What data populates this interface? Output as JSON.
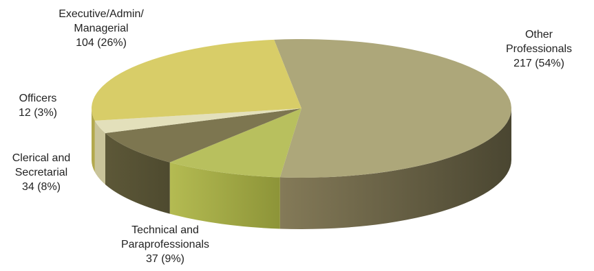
{
  "chart_data": {
    "type": "pie",
    "three_d": true,
    "slices": [
      {
        "category": "Other Professionals",
        "lines": [
          "Other",
          "Professionals"
        ],
        "value": 217,
        "percent_label": "217 (54%)",
        "color": "#ada77a"
      },
      {
        "category": "Technical and Paraprofessionals",
        "lines": [
          "Technical and",
          "Paraprofessionals"
        ],
        "value": 37,
        "percent_label": "37 (9%)",
        "color": "#b8c05e"
      },
      {
        "category": "Clerical and Secretarial",
        "lines": [
          "Clerical and",
          "Secretarial"
        ],
        "value": 34,
        "percent_label": "34 (8%)",
        "color": "#7d7650"
      },
      {
        "category": "Officers",
        "lines": [
          "Officers"
        ],
        "value": 12,
        "percent_label": "12 (3%)",
        "color": "#e3e0bb"
      },
      {
        "category": "Executive/Admin/Managerial",
        "lines": [
          "Executive/Admin/",
          "Managerial"
        ],
        "value": 104,
        "percent_label": "104 (26%)",
        "color": "#d8cd68"
      }
    ]
  }
}
